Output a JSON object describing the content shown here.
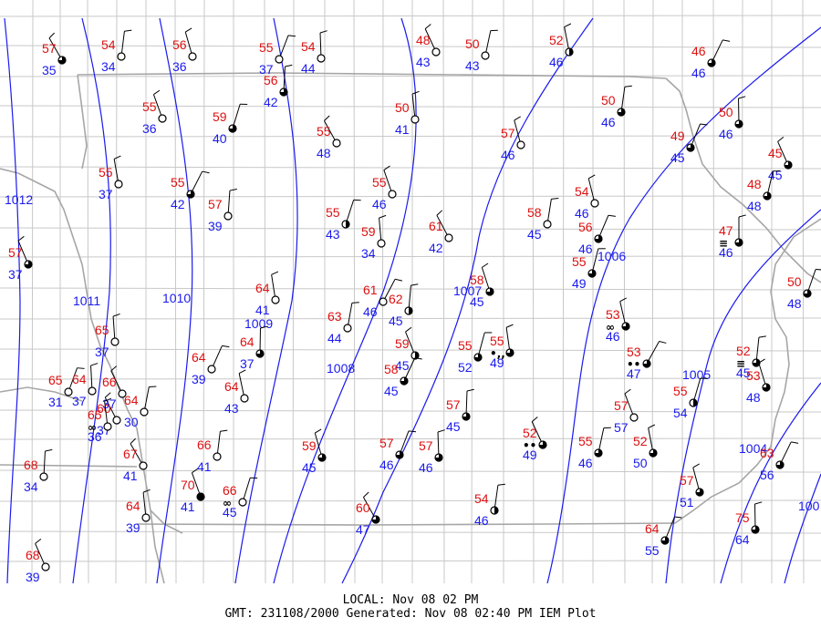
{
  "map": {
    "title_local": "LOCAL: Nov 08 02 PM",
    "title_gmt": "GMT: 231108/2000 Generated: Nov 08 02:40 PM IEM Plot",
    "colors": {
      "temperature": "#dd1111",
      "dewpoint": "#1a1aee",
      "isobar": "#1a1aee",
      "county_line": "#c8c8c8",
      "state_line": "#a6a6a6",
      "station": "#000000"
    },
    "isobars": [
      {
        "label": "1012"
      },
      {
        "label": "1011"
      },
      {
        "label": "1010"
      },
      {
        "label": "1009"
      },
      {
        "label": "1008"
      },
      {
        "label": "1007"
      },
      {
        "label": "1006"
      },
      {
        "label": "1005"
      },
      {
        "label": "1004"
      },
      {
        "label": "100"
      }
    ],
    "stations": [
      {
        "temp": "57",
        "dewp": "35",
        "sky": "partly"
      },
      {
        "temp": "54",
        "dewp": "34",
        "sky": "clear"
      },
      {
        "temp": "56",
        "dewp": "36",
        "sky": "clear"
      },
      {
        "temp": "55",
        "dewp": "37",
        "sky": "clear"
      },
      {
        "temp": "54",
        "dewp": "44",
        "sky": "clear"
      },
      {
        "temp": "48",
        "dewp": "43",
        "sky": "clear"
      },
      {
        "temp": "50",
        "dewp": "43",
        "sky": "clear"
      },
      {
        "temp": "52",
        "dewp": "46",
        "sky": "half"
      },
      {
        "temp": "46",
        "dewp": "46",
        "sky": "partly"
      },
      {
        "temp": "56",
        "dewp": "42",
        "sky": "partly"
      },
      {
        "temp": "55",
        "dewp": "36",
        "sky": "clear"
      },
      {
        "temp": "59",
        "dewp": "40",
        "sky": "partly"
      },
      {
        "temp": "50",
        "dewp": "41",
        "sky": "clear"
      },
      {
        "temp": "55",
        "dewp": "48",
        "sky": "clear"
      },
      {
        "temp": "50",
        "dewp": "46",
        "sky": "partly"
      },
      {
        "temp": "57",
        "dewp": "46",
        "sky": "clear"
      },
      {
        "temp": "49",
        "dewp": "45",
        "sky": "partly"
      },
      {
        "temp": "50",
        "dewp": "46",
        "sky": "partly"
      },
      {
        "temp": "45",
        "dewp": "45",
        "sky": "partly"
      },
      {
        "temp": "48",
        "dewp": "48",
        "sky": "partly"
      },
      {
        "temp": "55",
        "dewp": "37",
        "sky": "clear"
      },
      {
        "temp": "55",
        "dewp": "42",
        "sky": "partly"
      },
      {
        "temp": "57",
        "dewp": "39",
        "sky": "clear"
      },
      {
        "temp": "55",
        "dewp": "46",
        "sky": "clear"
      },
      {
        "temp": "55",
        "dewp": "43",
        "sky": "half"
      },
      {
        "temp": "59",
        "dewp": "34",
        "sky": "clear"
      },
      {
        "temp": "61",
        "dewp": "42",
        "sky": "clear"
      },
      {
        "temp": "58",
        "dewp": "45",
        "sky": "clear"
      },
      {
        "temp": "54",
        "dewp": "46",
        "sky": "clear"
      },
      {
        "temp": "56",
        "dewp": "46",
        "sky": "partly"
      },
      {
        "temp": "47",
        "dewp": "46",
        "sky": "partly",
        "wx": "fog"
      },
      {
        "temp": "57",
        "dewp": "37",
        "sky": "partly"
      },
      {
        "temp": "55",
        "dewp": "49",
        "sky": "partly"
      },
      {
        "temp": "64",
        "dewp": "41",
        "sky": "clear"
      },
      {
        "temp": "61",
        "dewp": "46",
        "sky": "clear"
      },
      {
        "temp": "62",
        "dewp": "45",
        "sky": "half"
      },
      {
        "temp": "58",
        "dewp": "45",
        "sky": "partly"
      },
      {
        "temp": "50",
        "dewp": "48",
        "sky": "partly"
      },
      {
        "temp": "65",
        "dewp": "37",
        "sky": "clear"
      },
      {
        "temp": "60",
        "dewp": "37",
        "sky": "clear"
      },
      {
        "temp": "63",
        "dewp": "44",
        "sky": "clear"
      },
      {
        "temp": "53",
        "dewp": "46",
        "sky": "partly",
        "wx": "haze"
      },
      {
        "temp": "64",
        "dewp": "39",
        "sky": "clear"
      },
      {
        "temp": "64",
        "dewp": "37",
        "sky": "partly"
      },
      {
        "temp": "59",
        "dewp": "45",
        "sky": "half"
      },
      {
        "temp": "55",
        "dewp": "52",
        "sky": "partly"
      },
      {
        "temp": "55",
        "dewp": "49",
        "sky": "partly",
        "wx": "drizzle"
      },
      {
        "temp": "53",
        "dewp": "47",
        "sky": "partly",
        "wx": "rain"
      },
      {
        "temp": "52",
        "dewp": "45",
        "sky": "partly",
        "wx": "fog"
      },
      {
        "temp": "53",
        "dewp": "48",
        "sky": "partly"
      },
      {
        "temp": "65",
        "dewp": "31",
        "sky": "clear"
      },
      {
        "temp": "64",
        "dewp": "37",
        "sky": "clear"
      },
      {
        "temp": "66",
        "dewp": "37",
        "sky": "clear"
      },
      {
        "temp": "64",
        "dewp": "30",
        "sky": "clear"
      },
      {
        "temp": "64",
        "dewp": "43",
        "sky": "clear"
      },
      {
        "temp": "58",
        "dewp": "45",
        "sky": "partly"
      },
      {
        "temp": "57",
        "dewp": "45",
        "sky": "partly"
      },
      {
        "temp": "57",
        "dewp": "57",
        "sky": "clear"
      },
      {
        "temp": "55",
        "dewp": "54",
        "sky": "half"
      },
      {
        "temp": "65",
        "dewp": "36",
        "sky": "clear",
        "wx": "haze"
      },
      {
        "temp": "67",
        "dewp": "41",
        "sky": "clear"
      },
      {
        "temp": "66",
        "dewp": "41",
        "sky": "clear"
      },
      {
        "temp": "59",
        "dewp": "45",
        "sky": "partly"
      },
      {
        "temp": "57",
        "dewp": "46",
        "sky": "partly"
      },
      {
        "temp": "57",
        "dewp": "46",
        "sky": "partly"
      },
      {
        "temp": "52",
        "dewp": "49",
        "sky": "partly",
        "wx": "rain"
      },
      {
        "temp": "55",
        "dewp": "46",
        "sky": "partly"
      },
      {
        "temp": "52",
        "dewp": "50",
        "sky": "partly"
      },
      {
        "temp": "63",
        "dewp": "56",
        "sky": "partly"
      },
      {
        "temp": "68",
        "dewp": "34",
        "sky": "clear"
      },
      {
        "temp": "70",
        "dewp": "41",
        "sky": "overcast"
      },
      {
        "temp": "66",
        "dewp": "45",
        "sky": "clear",
        "wx": "haze"
      },
      {
        "temp": "64",
        "dewp": "39",
        "sky": "clear"
      },
      {
        "temp": "60",
        "dewp": "47",
        "sky": "partly"
      },
      {
        "temp": "54",
        "dewp": "46",
        "sky": "half"
      },
      {
        "temp": "57",
        "dewp": "51",
        "sky": "partly"
      },
      {
        "temp": "64",
        "dewp": "55",
        "sky": "partly"
      },
      {
        "temp": "75",
        "dewp": "64",
        "sky": "partly"
      },
      {
        "temp": "68",
        "dewp": "39",
        "sky": "clear"
      }
    ]
  }
}
